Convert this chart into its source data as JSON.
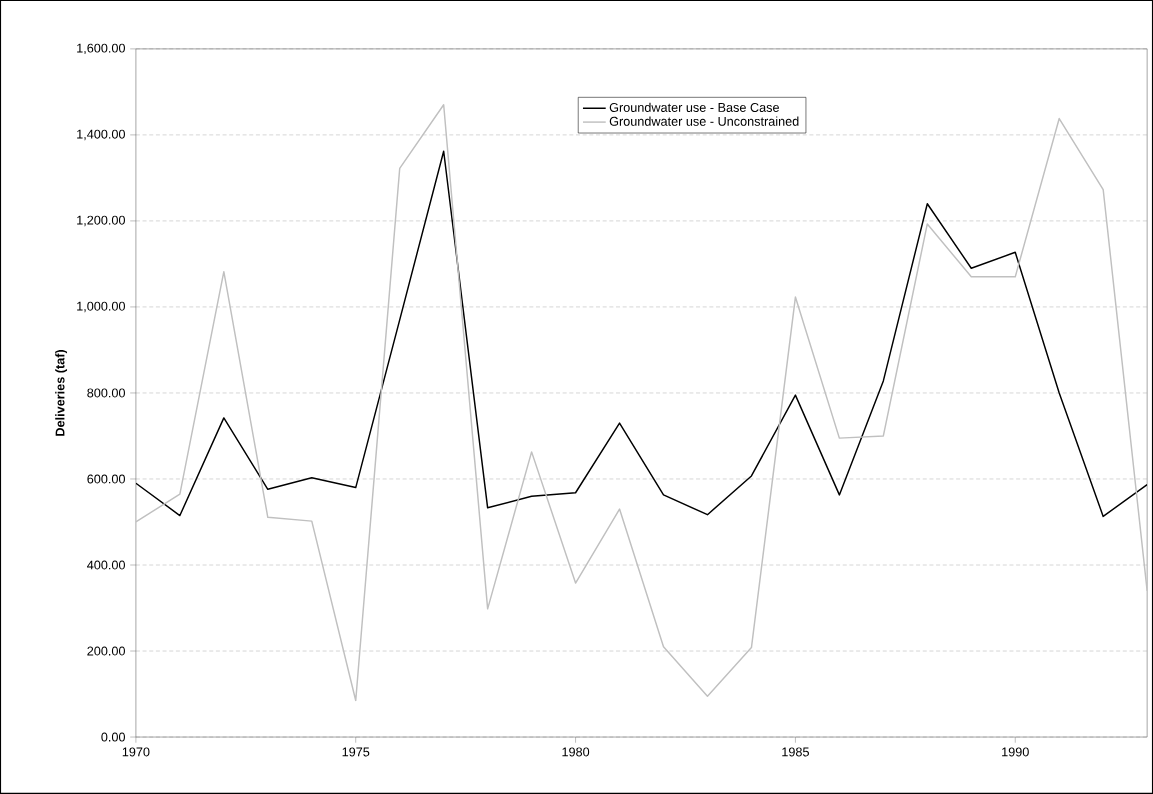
{
  "chart_data": {
    "type": "line",
    "ylabel": "Deliveries (taf)",
    "x": [
      1970,
      1971,
      1972,
      1973,
      1974,
      1975,
      1976,
      1977,
      1978,
      1979,
      1980,
      1981,
      1982,
      1983,
      1984,
      1985,
      1986,
      1987,
      1988,
      1989,
      1990,
      1991,
      1992,
      1993
    ],
    "series": [
      {
        "name": "Groundwater use - Base Case",
        "color": "#000000",
        "values": [
          590,
          515,
          742,
          576,
          603,
          580,
          970,
          1362,
          533,
          560,
          568,
          730,
          563,
          517,
          607,
          795,
          563,
          828,
          1240,
          1090,
          1127,
          800,
          513,
          587
        ]
      },
      {
        "name": "Groundwater use - Unconstrained",
        "color": "#c0c0c0",
        "values": [
          500,
          565,
          1082,
          511,
          502,
          85,
          1322,
          1470,
          298,
          663,
          358,
          530,
          210,
          95,
          208,
          1023,
          695,
          700,
          1193,
          1070,
          1070,
          1438,
          1273,
          340
        ]
      }
    ],
    "xlim": [
      1970,
      1993
    ],
    "xticks": [
      1970,
      1975,
      1980,
      1985,
      1990
    ],
    "ylim": [
      0,
      1600
    ],
    "yticks": [
      {
        "value": 0,
        "label": "0.00"
      },
      {
        "value": 200,
        "label": "200.00"
      },
      {
        "value": 400,
        "label": "400.00"
      },
      {
        "value": 600,
        "label": "600.00"
      },
      {
        "value": 800,
        "label": "800.00"
      },
      {
        "value": 1000,
        "label": "1,000.00"
      },
      {
        "value": 1200,
        "label": "1,200.00"
      },
      {
        "value": 1400,
        "label": "1,400.00"
      },
      {
        "value": 1600,
        "label": "1,600.00"
      }
    ],
    "grid": "y",
    "legend": "top",
    "line_style": "solid"
  }
}
